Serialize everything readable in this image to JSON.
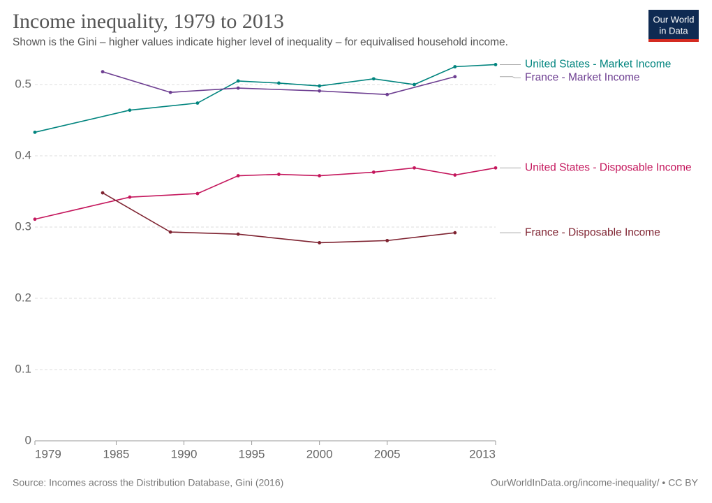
{
  "chart_data": {
    "type": "line",
    "title": "Income inequality, 1979 to 2013",
    "subtitle": "Shown is the Gini – higher values indicate higher level of inequality – for equivalised household income.",
    "source": "Source: Incomes across the Distribution Database, Gini (2016)",
    "url": "OurWorldInData.org/income-inequality/ • CC BY",
    "logo": [
      "Our World",
      "in Data"
    ],
    "xlim": [
      1979,
      2013
    ],
    "xticks": [
      1979,
      1985,
      1990,
      1995,
      2000,
      2005,
      2013
    ],
    "ylim": [
      0,
      0.53
    ],
    "yticks": [
      0,
      0.1,
      0.2,
      0.3,
      0.4,
      0.5
    ],
    "grid": true,
    "series": [
      {
        "name": "United States - Market Income",
        "color": "#00847e",
        "x": [
          1979,
          1986,
          1991,
          1994,
          1997,
          2000,
          2004,
          2007,
          2010,
          2013
        ],
        "values": [
          0.433,
          0.464,
          0.474,
          0.505,
          0.502,
          0.498,
          0.508,
          0.5,
          0.525,
          0.528
        ]
      },
      {
        "name": "France - Market Income",
        "color": "#6d3e91",
        "x": [
          1984,
          1989,
          1994,
          2000,
          2005,
          2010
        ],
        "values": [
          0.518,
          0.489,
          0.495,
          0.491,
          0.486,
          0.511
        ]
      },
      {
        "name": "United States - Disposable Income",
        "color": "#c4165c",
        "x": [
          1979,
          1986,
          1991,
          1994,
          1997,
          2000,
          2004,
          2007,
          2010,
          2013
        ],
        "values": [
          0.311,
          0.342,
          0.347,
          0.372,
          0.374,
          0.372,
          0.377,
          0.383,
          0.373,
          0.383
        ]
      },
      {
        "name": "France - Disposable Income",
        "color": "#7e2230",
        "x": [
          1984,
          1989,
          1994,
          2000,
          2005,
          2010
        ],
        "values": [
          0.348,
          0.293,
          0.29,
          0.278,
          0.281,
          0.292
        ]
      }
    ]
  }
}
